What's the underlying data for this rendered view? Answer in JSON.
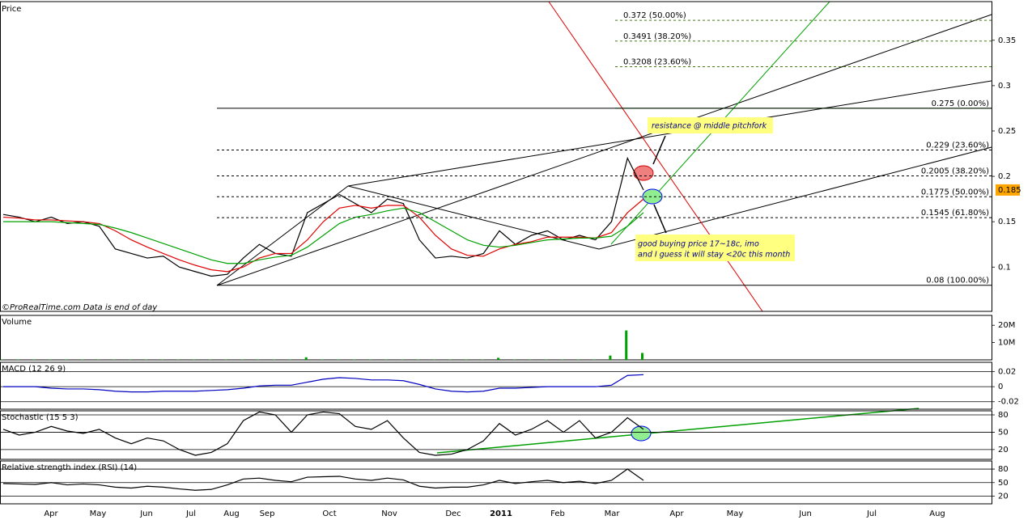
{
  "chart_data": [
    {
      "type": "line",
      "title": "Price",
      "series": [
        {
          "color": "#000000",
          "values": [
            0.158,
            0.155,
            0.15,
            0.155,
            0.148,
            0.15,
            0.145,
            0.12,
            0.115,
            0.11,
            0.112,
            0.1,
            0.095,
            0.09,
            0.092,
            0.11,
            0.125,
            0.115,
            0.112,
            0.16,
            0.17,
            0.18,
            0.17,
            0.16,
            0.175,
            0.17,
            0.13,
            0.11,
            0.112,
            0.11,
            0.115,
            0.14,
            0.125,
            0.135,
            0.14,
            0.13,
            0.135,
            0.13,
            0.15,
            0.22,
            0.185
          ]
        },
        {
          "color": "#e00000",
          "values": [
            0.155,
            0.154,
            0.152,
            0.152,
            0.151,
            0.15,
            0.148,
            0.14,
            0.13,
            0.122,
            0.115,
            0.108,
            0.102,
            0.097,
            0.095,
            0.1,
            0.11,
            0.115,
            0.115,
            0.13,
            0.15,
            0.165,
            0.168,
            0.165,
            0.168,
            0.168,
            0.155,
            0.135,
            0.12,
            0.113,
            0.112,
            0.12,
            0.125,
            0.128,
            0.133,
            0.133,
            0.133,
            0.132,
            0.138,
            0.16,
            0.175
          ]
        },
        {
          "color": "#00a000",
          "values": [
            0.15,
            0.15,
            0.15,
            0.15,
            0.149,
            0.148,
            0.147,
            0.143,
            0.138,
            0.132,
            0.126,
            0.12,
            0.114,
            0.108,
            0.104,
            0.104,
            0.108,
            0.111,
            0.113,
            0.122,
            0.135,
            0.148,
            0.155,
            0.158,
            0.162,
            0.165,
            0.16,
            0.15,
            0.14,
            0.13,
            0.124,
            0.122,
            0.124,
            0.127,
            0.13,
            0.131,
            0.132,
            0.132,
            0.134,
            0.145,
            0.16
          ]
        }
      ],
      "ylim": [
        0.0512,
        0.3926
      ],
      "yticks": [
        0.1,
        0.15,
        0.2,
        0.25,
        0.3,
        0.35
      ],
      "fib_upper": [
        {
          "value": 0.372,
          "label": "0.372 (50.00%)"
        },
        {
          "value": 0.3491,
          "label": "0.3491 (38.20%)"
        },
        {
          "value": 0.3208,
          "label": "0.3208 (23.60%)"
        },
        {
          "value": 0.275,
          "label": "0.275 (0.00%)"
        }
      ],
      "fib_levels": [
        {
          "value": 0.275,
          "label": "0.275 (0.00%)"
        },
        {
          "value": 0.229,
          "label": "0.229 (23.60%)"
        },
        {
          "value": 0.2005,
          "label": "0.2005 (38.20%)"
        },
        {
          "value": 0.1775,
          "label": "0.1775 (50.00%)"
        },
        {
          "value": 0.1545,
          "label": "0.1545 (61.80%)"
        },
        {
          "value": 0.08,
          "label": "0.08 (100.00%)"
        }
      ],
      "last_price": {
        "value": 0.185,
        "label": "0.185"
      },
      "annotations": [
        "resistance @ middle pitchfork",
        "good buying price 17~18c, imo",
        "and I guess it will stay <20c this month"
      ],
      "watermark": "©ProRealTime.com  Data is end of day"
    },
    {
      "type": "bar",
      "title": "Volume",
      "color": "#00a000",
      "values": [
        300000,
        300000,
        300000,
        300000,
        300000,
        300000,
        300000,
        300000,
        300000,
        300000,
        300000,
        300000,
        300000,
        300000,
        300000,
        300000,
        300000,
        300000,
        300000,
        1500000,
        300000,
        300000,
        300000,
        300000,
        300000,
        300000,
        300000,
        300000,
        300000,
        300000,
        300000,
        1200000,
        300000,
        300000,
        300000,
        300000,
        300000,
        300000,
        2500000,
        17000000,
        4000000
      ],
      "ylim": [
        0,
        25700000
      ],
      "yticks": [
        {
          "value": 10000000,
          "label": "10M"
        },
        {
          "value": 20000000,
          "label": "20M"
        }
      ]
    },
    {
      "type": "line",
      "title": "MACD (12 26 9)",
      "series": [
        {
          "color": "#0000c0",
          "values": [
            0,
            0,
            0,
            -0.002,
            -0.003,
            -0.003,
            -0.004,
            -0.006,
            -0.007,
            -0.007,
            -0.006,
            -0.006,
            -0.006,
            -0.005,
            -0.004,
            -0.002,
            0.001,
            0.002,
            0.002,
            0.006,
            0.01,
            0.012,
            0.011,
            0.009,
            0.009,
            0.008,
            0.003,
            -0.003,
            -0.006,
            -0.007,
            -0.006,
            -0.002,
            -0.002,
            -0.001,
            0,
            0,
            0,
            0,
            0.002,
            0.015,
            0.016
          ]
        }
      ],
      "ylim": [
        -0.03,
        0.0325
      ],
      "yticks": [
        -0.02,
        0,
        0.02
      ]
    },
    {
      "type": "line",
      "title": "Stochastic (15 5 3)",
      "series": [
        {
          "color": "#000000",
          "values": [
            55,
            45,
            50,
            60,
            52,
            48,
            55,
            40,
            30,
            40,
            35,
            20,
            10,
            15,
            30,
            70,
            85,
            80,
            50,
            80,
            85,
            82,
            60,
            55,
            70,
            40,
            15,
            10,
            12,
            20,
            35,
            65,
            45,
            55,
            70,
            50,
            70,
            40,
            50,
            75,
            55
          ]
        }
      ],
      "ylim": [
        3,
        87
      ],
      "yticks": [
        20,
        50,
        80
      ]
    },
    {
      "type": "line",
      "title": "Relative strength index (RSI) (14)",
      "series": [
        {
          "color": "#000000",
          "values": [
            48,
            47,
            46,
            50,
            45,
            47,
            45,
            40,
            38,
            42,
            40,
            36,
            33,
            35,
            45,
            58,
            60,
            55,
            52,
            62,
            63,
            64,
            58,
            55,
            60,
            56,
            42,
            38,
            40,
            40,
            45,
            55,
            48,
            52,
            55,
            50,
            53,
            48,
            55,
            80,
            55
          ]
        }
      ],
      "ylim": [
        3,
        98
      ],
      "yticks": [
        20,
        50,
        80
      ]
    }
  ],
  "x_axis": {
    "categories": [
      "Apr",
      "May",
      "Jun",
      "Jul",
      "Aug",
      "Sep",
      "Oct",
      "Nov",
      "Dec",
      "2011",
      "Feb",
      "Mar",
      "Apr",
      "May",
      "Jun",
      "Jul",
      "Aug"
    ]
  }
}
